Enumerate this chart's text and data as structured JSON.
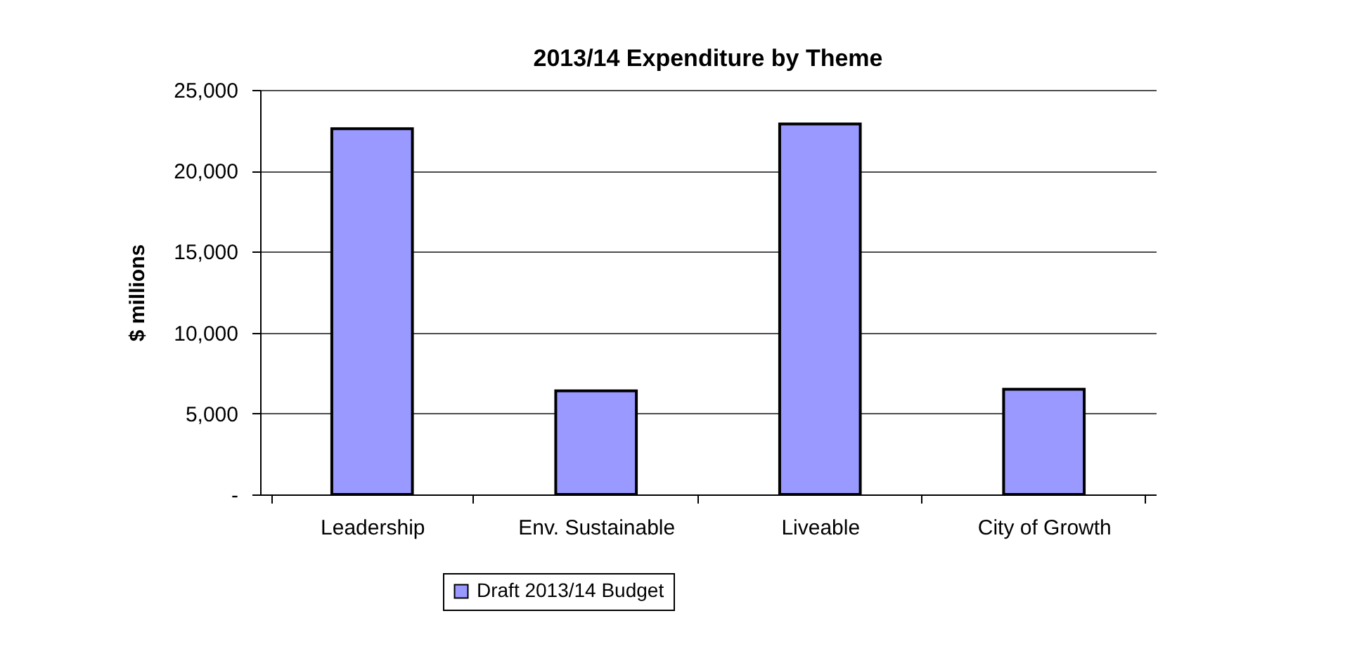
{
  "chart_data": {
    "type": "bar",
    "title": "2013/14 Expenditure by Theme",
    "ylabel": "$ millions",
    "categories": [
      "Leadership",
      "Env. Sustainable",
      "Liveable",
      "City of Growth"
    ],
    "series": [
      {
        "name": "Draft 2013/14 Budget",
        "color": "#9999ff",
        "values": [
          22600,
          6400,
          22900,
          6500
        ]
      }
    ],
    "ylim": [
      0,
      25000
    ],
    "yticks": [
      {
        "value": 0,
        "label": "-"
      },
      {
        "value": 5000,
        "label": "5,000"
      },
      {
        "value": 10000,
        "label": "10,000"
      },
      {
        "value": 15000,
        "label": "15,000"
      },
      {
        "value": 20000,
        "label": "20,000"
      },
      {
        "value": 25000,
        "label": "25,000"
      }
    ],
    "grid": "y",
    "legend": "bottom"
  }
}
